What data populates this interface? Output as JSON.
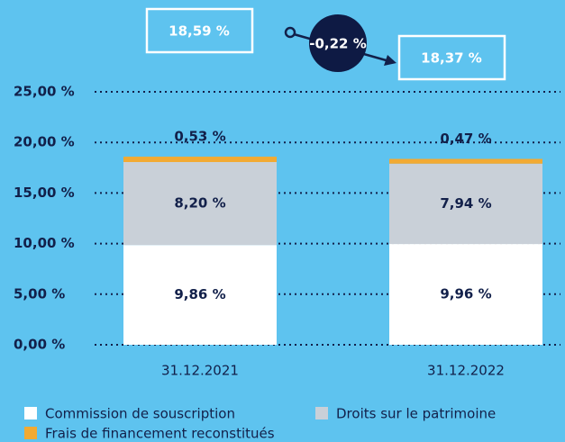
{
  "chart_data": {
    "type": "stacked_bar",
    "categories": [
      "31.12.2021",
      "31.12.2022"
    ],
    "series": [
      {
        "name": "Commission de souscription",
        "color": "#ffffff",
        "values": [
          9.86,
          9.96
        ],
        "value_labels": [
          "9,86 %",
          "9,96 %"
        ]
      },
      {
        "name": "Droits sur le patrimoine",
        "color": "#c9d0d8",
        "values": [
          8.2,
          7.94
        ],
        "value_labels": [
          "8,20 %",
          "7,94 %"
        ]
      },
      {
        "name": "Frais de financement reconstitués",
        "color": "#f2aa33",
        "values": [
          0.53,
          0.47
        ],
        "value_labels": [
          "0,53 %",
          "0,47 %"
        ]
      }
    ],
    "totals": [
      18.59,
      18.37
    ],
    "total_labels": [
      "18,59 %",
      "18,37 %"
    ],
    "change": -0.22,
    "change_label": "-0,22 %",
    "ylim": [
      0,
      25
    ],
    "yticks": [
      {
        "value": 0,
        "label": "0,00 %"
      },
      {
        "value": 5,
        "label": "5,00 %"
      },
      {
        "value": 10,
        "label": "10,00 %"
      },
      {
        "value": 15,
        "label": "15,00 %"
      },
      {
        "value": 20,
        "label": "20,00 %"
      },
      {
        "value": 25,
        "label": "25,00 %"
      }
    ],
    "grid": true
  }
}
